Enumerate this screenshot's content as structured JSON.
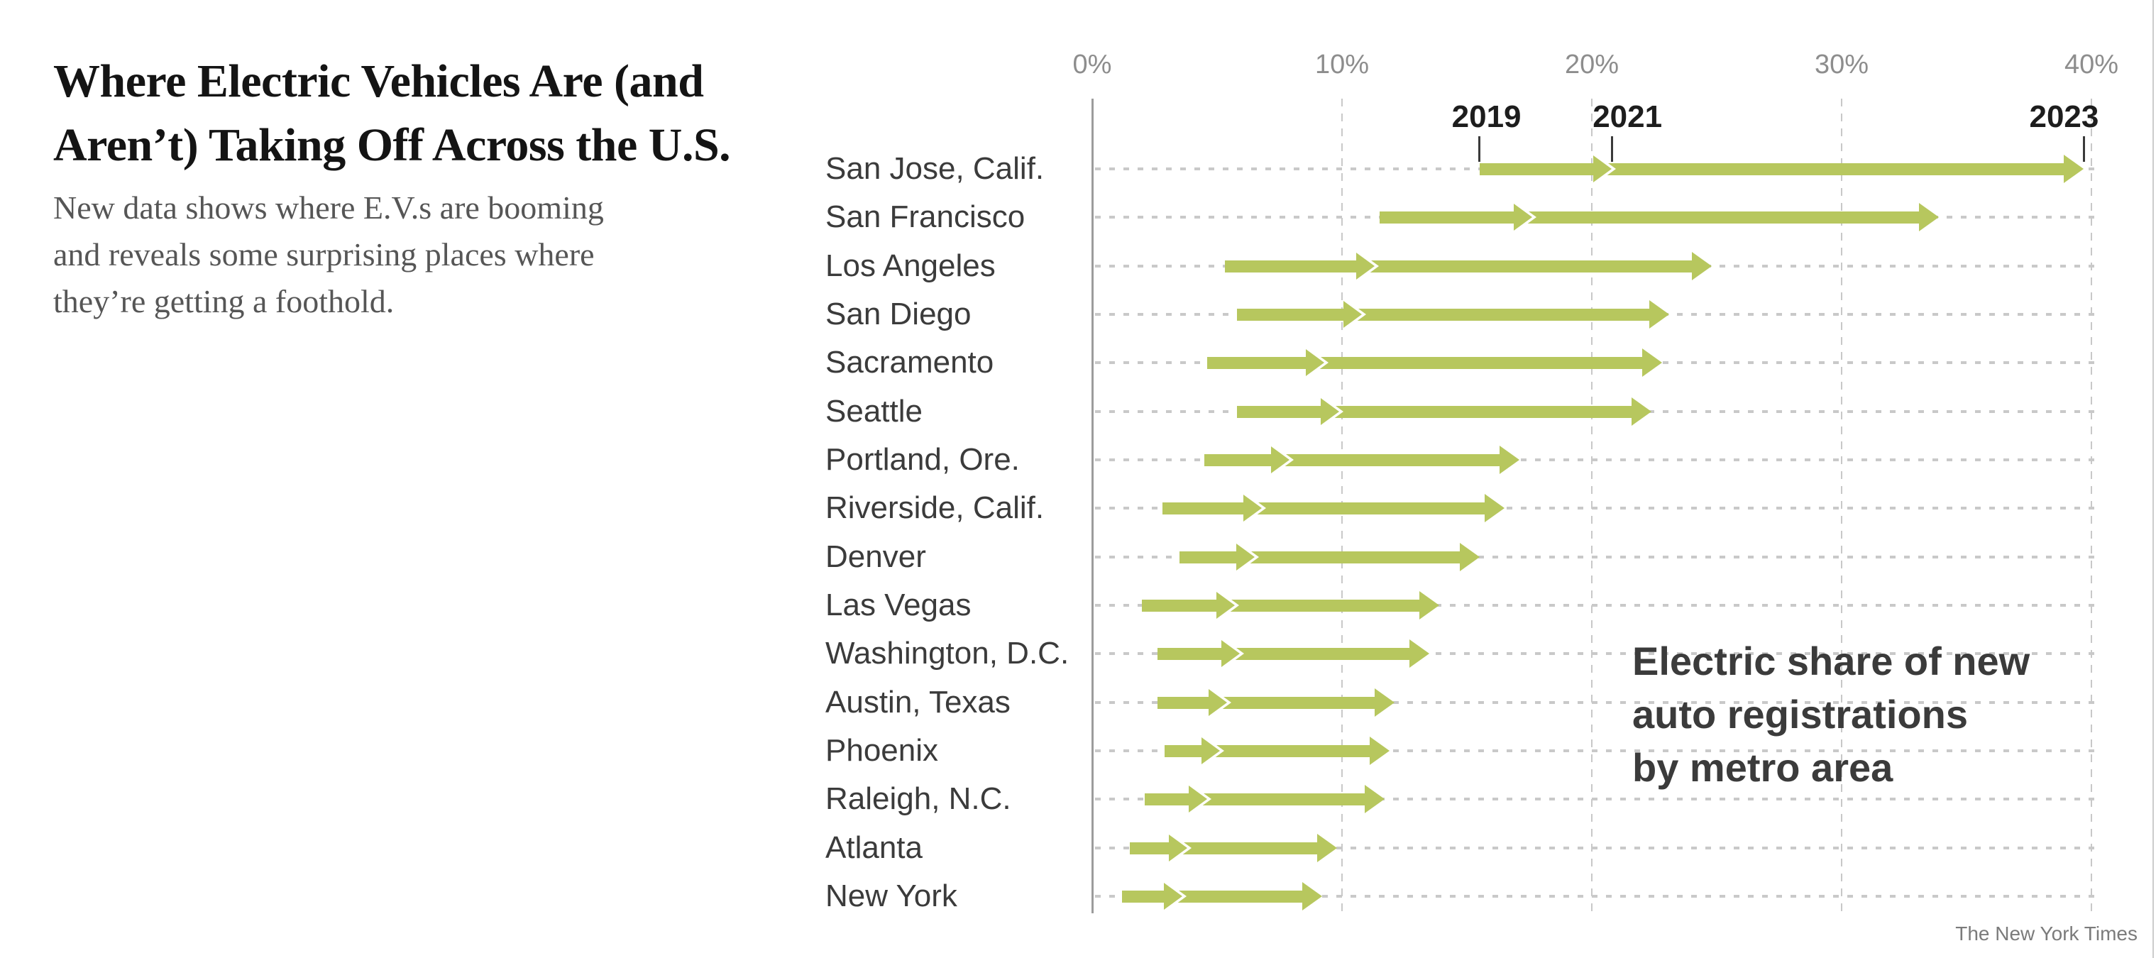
{
  "header": {
    "title_lines": [
      "Where Electric Vehicles Are (and",
      "Aren’t) Taking Off Across the U.S."
    ],
    "subtitle_lines": [
      "New data shows where E.V.s are booming",
      "and reveals some surprising places where",
      "they’re getting a foothold."
    ]
  },
  "annotation_lines": [
    "Electric share of new",
    "auto registrations",
    "by metro area"
  ],
  "credit": "The New York Times",
  "chart_data": {
    "type": "arrow-range",
    "title": "Electric share of new auto registrations by metro area",
    "unit": "percent",
    "years": [
      "2019",
      "2021",
      "2023"
    ],
    "x_tick_labels": [
      "0%",
      "10%",
      "20%",
      "30%",
      "40%"
    ],
    "x_tick_values": [
      0,
      10,
      20,
      30,
      40
    ],
    "x_range": [
      0,
      40
    ],
    "grid": "dashed-vertical",
    "year_labels_annotate_row": "San Jose, Calif.",
    "colors": {
      "arrow": "#b7c75e",
      "gridline": "#c8c8c8",
      "leader_dots": "#c9c9c9",
      "axis_line": "#9c9c9c",
      "year_label": "#1d1d1d",
      "metro_label": "#3b3b3b"
    },
    "series": [
      {
        "metro": "San Jose, Calif.",
        "values": [
          15.5,
          20.8,
          39.7
        ]
      },
      {
        "metro": "San Francisco",
        "values": [
          11.5,
          17.6,
          33.9
        ]
      },
      {
        "metro": "Los Angeles",
        "values": [
          5.3,
          11.3,
          24.8
        ]
      },
      {
        "metro": "San Diego",
        "values": [
          5.8,
          10.8,
          23.1
        ]
      },
      {
        "metro": "Sacramento",
        "values": [
          4.6,
          9.3,
          22.8
        ]
      },
      {
        "metro": "Seattle",
        "values": [
          5.8,
          9.9,
          22.4
        ]
      },
      {
        "metro": "Portland, Ore.",
        "values": [
          4.5,
          7.9,
          17.1
        ]
      },
      {
        "metro": "Riverside, Calif.",
        "values": [
          2.8,
          6.8,
          16.5
        ]
      },
      {
        "metro": "Denver",
        "values": [
          3.5,
          6.5,
          15.5
        ]
      },
      {
        "metro": "Las Vegas",
        "values": [
          2.0,
          5.7,
          13.9
        ]
      },
      {
        "metro": "Washington, D.C.",
        "values": [
          2.6,
          5.9,
          13.5
        ]
      },
      {
        "metro": "Austin, Texas",
        "values": [
          2.6,
          5.4,
          12.1
        ]
      },
      {
        "metro": "Phoenix",
        "values": [
          2.9,
          5.1,
          11.9
        ]
      },
      {
        "metro": "Raleigh, N.C.",
        "values": [
          2.1,
          4.6,
          11.7
        ]
      },
      {
        "metro": "Atlanta",
        "values": [
          1.5,
          3.8,
          9.8
        ]
      },
      {
        "metro": "New York",
        "values": [
          1.2,
          3.6,
          9.2
        ]
      }
    ]
  }
}
